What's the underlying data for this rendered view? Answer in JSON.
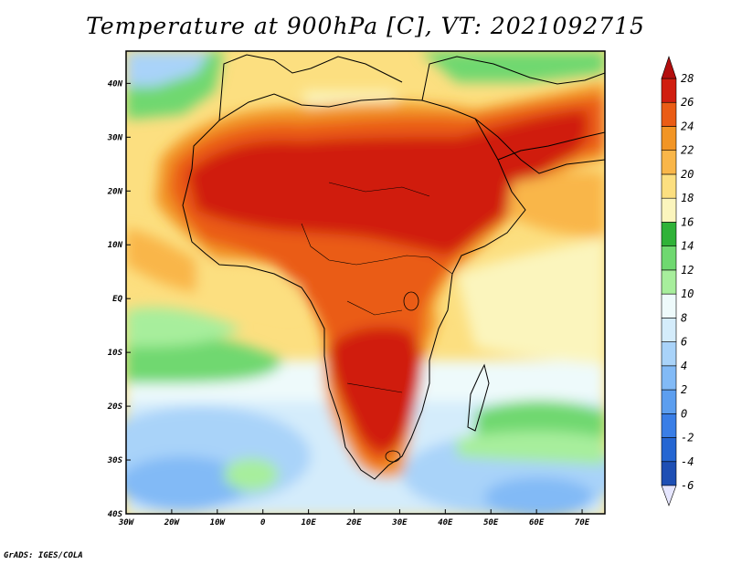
{
  "title": "Temperature at 900hPa [C], VT: 2021092715",
  "credit": "GrADS: IGES/COLA",
  "map": {
    "lon_range": [
      -30,
      75
    ],
    "lat_range": [
      -40,
      46
    ],
    "lon_ticks": [
      {
        "value": -30,
        "label": "30W"
      },
      {
        "value": -20,
        "label": "20W"
      },
      {
        "value": -10,
        "label": "10W"
      },
      {
        "value": 0,
        "label": "0"
      },
      {
        "value": 10,
        "label": "10E"
      },
      {
        "value": 20,
        "label": "20E"
      },
      {
        "value": 30,
        "label": "30E"
      },
      {
        "value": 40,
        "label": "40E"
      },
      {
        "value": 50,
        "label": "50E"
      },
      {
        "value": 60,
        "label": "60E"
      },
      {
        "value": 70,
        "label": "70E"
      }
    ],
    "lat_ticks": [
      {
        "value": 40,
        "label": "40N"
      },
      {
        "value": 30,
        "label": "30N"
      },
      {
        "value": 20,
        "label": "20N"
      },
      {
        "value": 10,
        "label": "10N"
      },
      {
        "value": 0,
        "label": "EQ"
      },
      {
        "value": -10,
        "label": "10S"
      },
      {
        "value": -20,
        "label": "20S"
      },
      {
        "value": -30,
        "label": "30S"
      },
      {
        "value": -40,
        "label": "40S"
      }
    ]
  },
  "colorbar": {
    "levels": [
      "-6",
      "-4",
      "-2",
      "0",
      "2",
      "4",
      "6",
      "8",
      "10",
      "12",
      "14",
      "16",
      "18",
      "20",
      "22",
      "24",
      "26",
      "28"
    ],
    "colors": [
      "#0f1a7a",
      "#1e4fb4",
      "#2566d2",
      "#3a7ee6",
      "#5c9eef",
      "#82baf6",
      "#a9d3f9",
      "#d4ecfb",
      "#eefafb",
      "#a7ee9c",
      "#6fd870",
      "#2fb238",
      "#fbf5bd",
      "#fcdf80",
      "#f9b649",
      "#f29525",
      "#ea5c15",
      "#d01e10",
      "#b30e0e"
    ]
  },
  "chart_data": {
    "type": "heatmap",
    "title": "Temperature at 900hPa [C], VT: 2021092715",
    "variable": "Temperature at 900hPa",
    "units": "C",
    "valid_time": "2021092715",
    "x_range": [
      -30,
      75
    ],
    "y_range": [
      -40,
      46
    ],
    "legend_levels": [
      -6,
      -4,
      -2,
      0,
      2,
      4,
      6,
      8,
      10,
      12,
      14,
      16,
      18,
      20,
      22,
      24,
      26,
      28
    ],
    "regions": [
      {
        "lon": [
          -17,
          32
        ],
        "lat": [
          12,
          32
        ],
        "value": 28
      },
      {
        "lon": [
          35,
          60
        ],
        "lat": [
          14,
          32
        ],
        "value": 28
      },
      {
        "lon": [
          14,
          33
        ],
        "lat": [
          -30,
          -8
        ],
        "value": 27
      },
      {
        "lon": [
          -8,
          8
        ],
        "lat": [
          4,
          10
        ],
        "value": 22
      },
      {
        "lon": [
          40,
          75
        ],
        "lat": [
          -15,
          10
        ],
        "value": 20
      },
      {
        "lon": [
          -30,
          0
        ],
        "lat": [
          -15,
          0
        ],
        "value": 14
      },
      {
        "lon": [
          -30,
          10
        ],
        "lat": [
          -40,
          -25
        ],
        "value": 6
      },
      {
        "lon": [
          40,
          75
        ],
        "lat": [
          -40,
          -25
        ],
        "value": 6
      }
    ]
  }
}
